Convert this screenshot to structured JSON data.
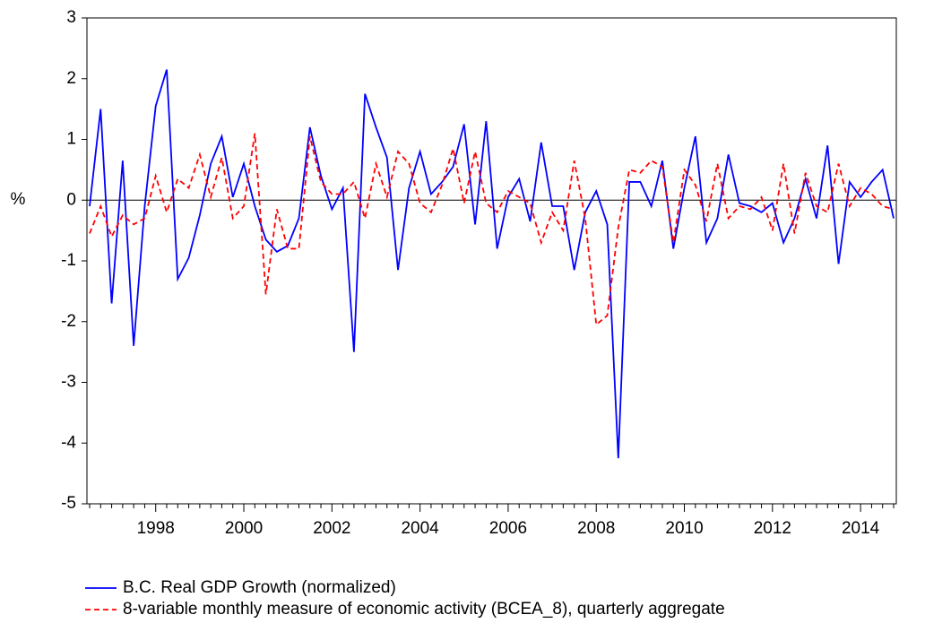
{
  "chart_data": {
    "type": "line",
    "y_label": "%",
    "categories": [
      null,
      null,
      null,
      null,
      null,
      null,
      "1998",
      null,
      null,
      null,
      null,
      null,
      null,
      null,
      "2000",
      null,
      null,
      null,
      null,
      null,
      null,
      null,
      "2002",
      null,
      null,
      null,
      null,
      null,
      null,
      null,
      "2004",
      null,
      null,
      null,
      null,
      null,
      null,
      null,
      "2006",
      null,
      null,
      null,
      null,
      null,
      null,
      null,
      "2008",
      null,
      null,
      null,
      null,
      null,
      null,
      null,
      "2010",
      null,
      null,
      null,
      null,
      null,
      null,
      null,
      "2012",
      null,
      null,
      null,
      null,
      null,
      null,
      null,
      "2014",
      null,
      null,
      null
    ],
    "series": [
      {
        "name": "B.C. Real GDP Growth (normalized)",
        "color": "#0000ff",
        "dash": false,
        "values": [
          -0.1,
          1.5,
          -1.7,
          0.65,
          -2.4,
          -0.1,
          1.55,
          2.15,
          -1.3,
          -0.95,
          -0.25,
          0.6,
          1.05,
          0.05,
          0.6,
          -0.1,
          -0.65,
          -0.85,
          -0.75,
          -0.3,
          1.2,
          0.4,
          -0.15,
          0.2,
          -2.5,
          1.75,
          1.2,
          0.7,
          -1.15,
          0.2,
          0.8,
          0.1,
          0.3,
          0.55,
          1.25,
          -0.4,
          1.3,
          -0.8,
          0.05,
          0.35,
          -0.35,
          0.95,
          -0.1,
          -0.1,
          -1.15,
          -0.2,
          0.15,
          -0.4,
          -4.25,
          0.3,
          0.3,
          -0.1,
          0.65,
          -0.8,
          0.2,
          1.05,
          -0.7,
          -0.3,
          0.75,
          -0.05,
          -0.1,
          -0.2,
          -0.05,
          -0.7,
          -0.3,
          0.35,
          -0.3,
          0.9,
          -1.05,
          0.3,
          0.05,
          0.3,
          0.5,
          -0.3
        ]
      },
      {
        "name": "8-variable monthly measure of economic activity (BCEA_8), quarterly aggregate",
        "color": "#ff0000",
        "dash": true,
        "values": [
          -0.55,
          -0.1,
          -0.6,
          -0.25,
          -0.4,
          -0.3,
          0.4,
          -0.2,
          0.35,
          0.2,
          0.75,
          0.05,
          0.7,
          -0.3,
          -0.1,
          1.1,
          -1.55,
          -0.15,
          -0.8,
          -0.8,
          1.05,
          0.3,
          0.1,
          0.1,
          0.3,
          -0.3,
          0.6,
          0.05,
          0.8,
          0.6,
          -0.05,
          -0.2,
          0.25,
          0.85,
          -0.05,
          0.8,
          -0.05,
          -0.2,
          0.15,
          0.05,
          -0.05,
          -0.7,
          -0.2,
          -0.5,
          0.65,
          -0.3,
          -2.05,
          -1.9,
          -0.45,
          0.5,
          0.45,
          0.65,
          0.55,
          -0.7,
          0.5,
          0.25,
          -0.35,
          0.6,
          -0.3,
          -0.1,
          -0.15,
          0.05,
          -0.5,
          0.6,
          -0.55,
          0.45,
          -0.1,
          -0.2,
          0.6,
          -0.1,
          0.2,
          0.1,
          -0.1,
          -0.15
        ]
      }
    ],
    "ylim": [
      -5,
      3
    ],
    "yticks": [
      -5,
      -4,
      -3,
      -2,
      -1,
      0,
      1,
      2,
      3
    ]
  }
}
